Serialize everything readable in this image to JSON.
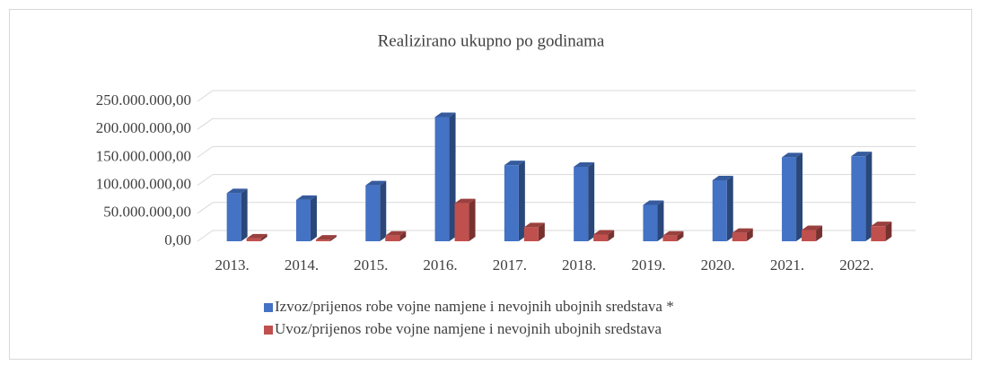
{
  "chart_data": {
    "type": "bar3d",
    "title": "Realizirano ukupno po godinama",
    "categories": [
      "2013.",
      "2014.",
      "2015.",
      "2016.",
      "2017.",
      "2018.",
      "2019.",
      "2020.",
      "2021.",
      "2022."
    ],
    "series": [
      {
        "name": "Izvoz/prijenos robe vojne namjene i nevojnih ubojnih sredstava *",
        "color": "#4472c4",
        "values": [
          86000000,
          74000000,
          100000000,
          222000000,
          136000000,
          133000000,
          65000000,
          109000000,
          150000000,
          152000000
        ]
      },
      {
        "name": "Uvoz/prijenos robe vojne namjene i nevojnih ubojnih sredstava",
        "color": "#c0504d",
        "values": [
          5000000,
          3000000,
          10000000,
          68000000,
          25000000,
          12000000,
          10000000,
          15000000,
          20000000,
          27000000
        ]
      }
    ],
    "ylim": [
      0,
      250000000
    ],
    "yticks": [
      {
        "value": 0,
        "label": "0,00"
      },
      {
        "value": 50000000,
        "label": "50.000.000,00"
      },
      {
        "value": 100000000,
        "label": "100.000.000,00"
      },
      {
        "value": 150000000,
        "label": "150.000.000,00"
      },
      {
        "value": 200000000,
        "label": "200.000.000,00"
      },
      {
        "value": 250000000,
        "label": "250.000.000,00"
      }
    ],
    "grid": true,
    "legend": "bottom"
  }
}
